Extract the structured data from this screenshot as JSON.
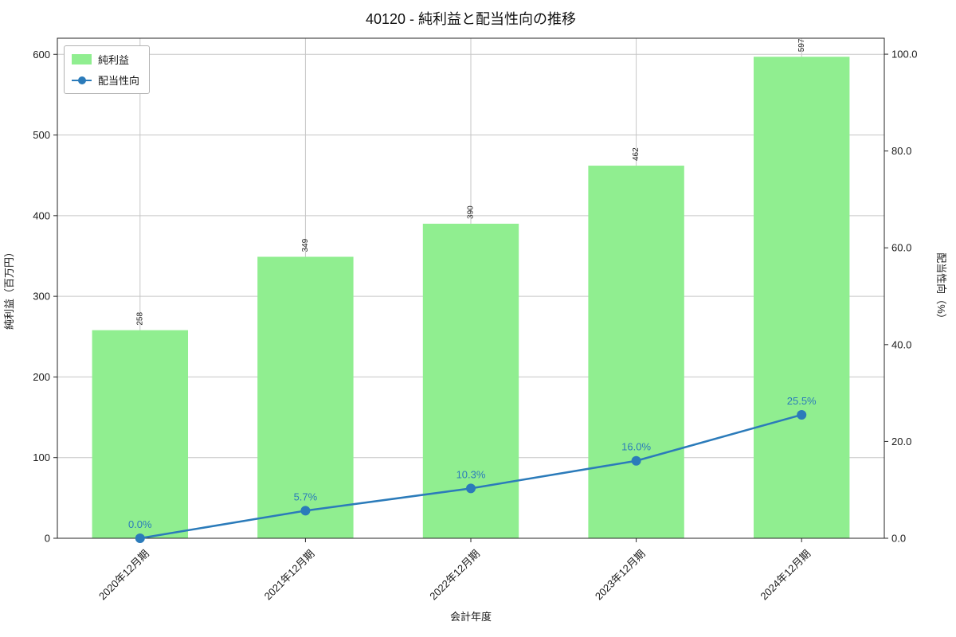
{
  "title": "40120 - 純利益と配当性向の推移",
  "axes": {
    "x_label": "会計年度",
    "y_left_label": "純利益（百万円）",
    "y_right_label": "配当性向（%）"
  },
  "legend": [
    {
      "label": "純利益",
      "type": "bar",
      "color": "#90ee90"
    },
    {
      "label": "配当性向",
      "type": "line",
      "color": "#2b7bba"
    }
  ],
  "chart_data": {
    "type": "bar",
    "title": "40120 - 純利益と配当性向の推移",
    "xlabel": "会計年度",
    "ylabel_left": "純利益（百万円）",
    "ylabel_right": "配当性向（%）",
    "categories": [
      "2020年12月期",
      "2021年12月期",
      "2022年12月期",
      "2023年12月期",
      "2024年12月期"
    ],
    "series": [
      {
        "name": "純利益",
        "type": "bar",
        "axis": "left",
        "color": "#90ee90",
        "values": [
          258,
          349,
          390,
          462,
          597
        ],
        "value_labels": [
          "258",
          "349",
          "390",
          "462",
          "597"
        ]
      },
      {
        "name": "配当性向",
        "type": "line",
        "axis": "right",
        "color": "#2b7bba",
        "values": [
          0.0,
          5.7,
          10.3,
          16.0,
          25.5
        ],
        "labels": [
          "0.0%",
          "5.7%",
          "10.3%",
          "16.0%",
          "25.5%"
        ]
      }
    ],
    "ylim_left": [
      0,
      620
    ],
    "ylim_right": [
      0,
      103.3
    ],
    "yticks_left": [
      0,
      100,
      200,
      300,
      400,
      500,
      600
    ],
    "yticks_right": [
      "0.0",
      "20.0",
      "40.0",
      "60.0",
      "80.0",
      "100.0"
    ],
    "grid": true,
    "legend_position": "upper left"
  }
}
